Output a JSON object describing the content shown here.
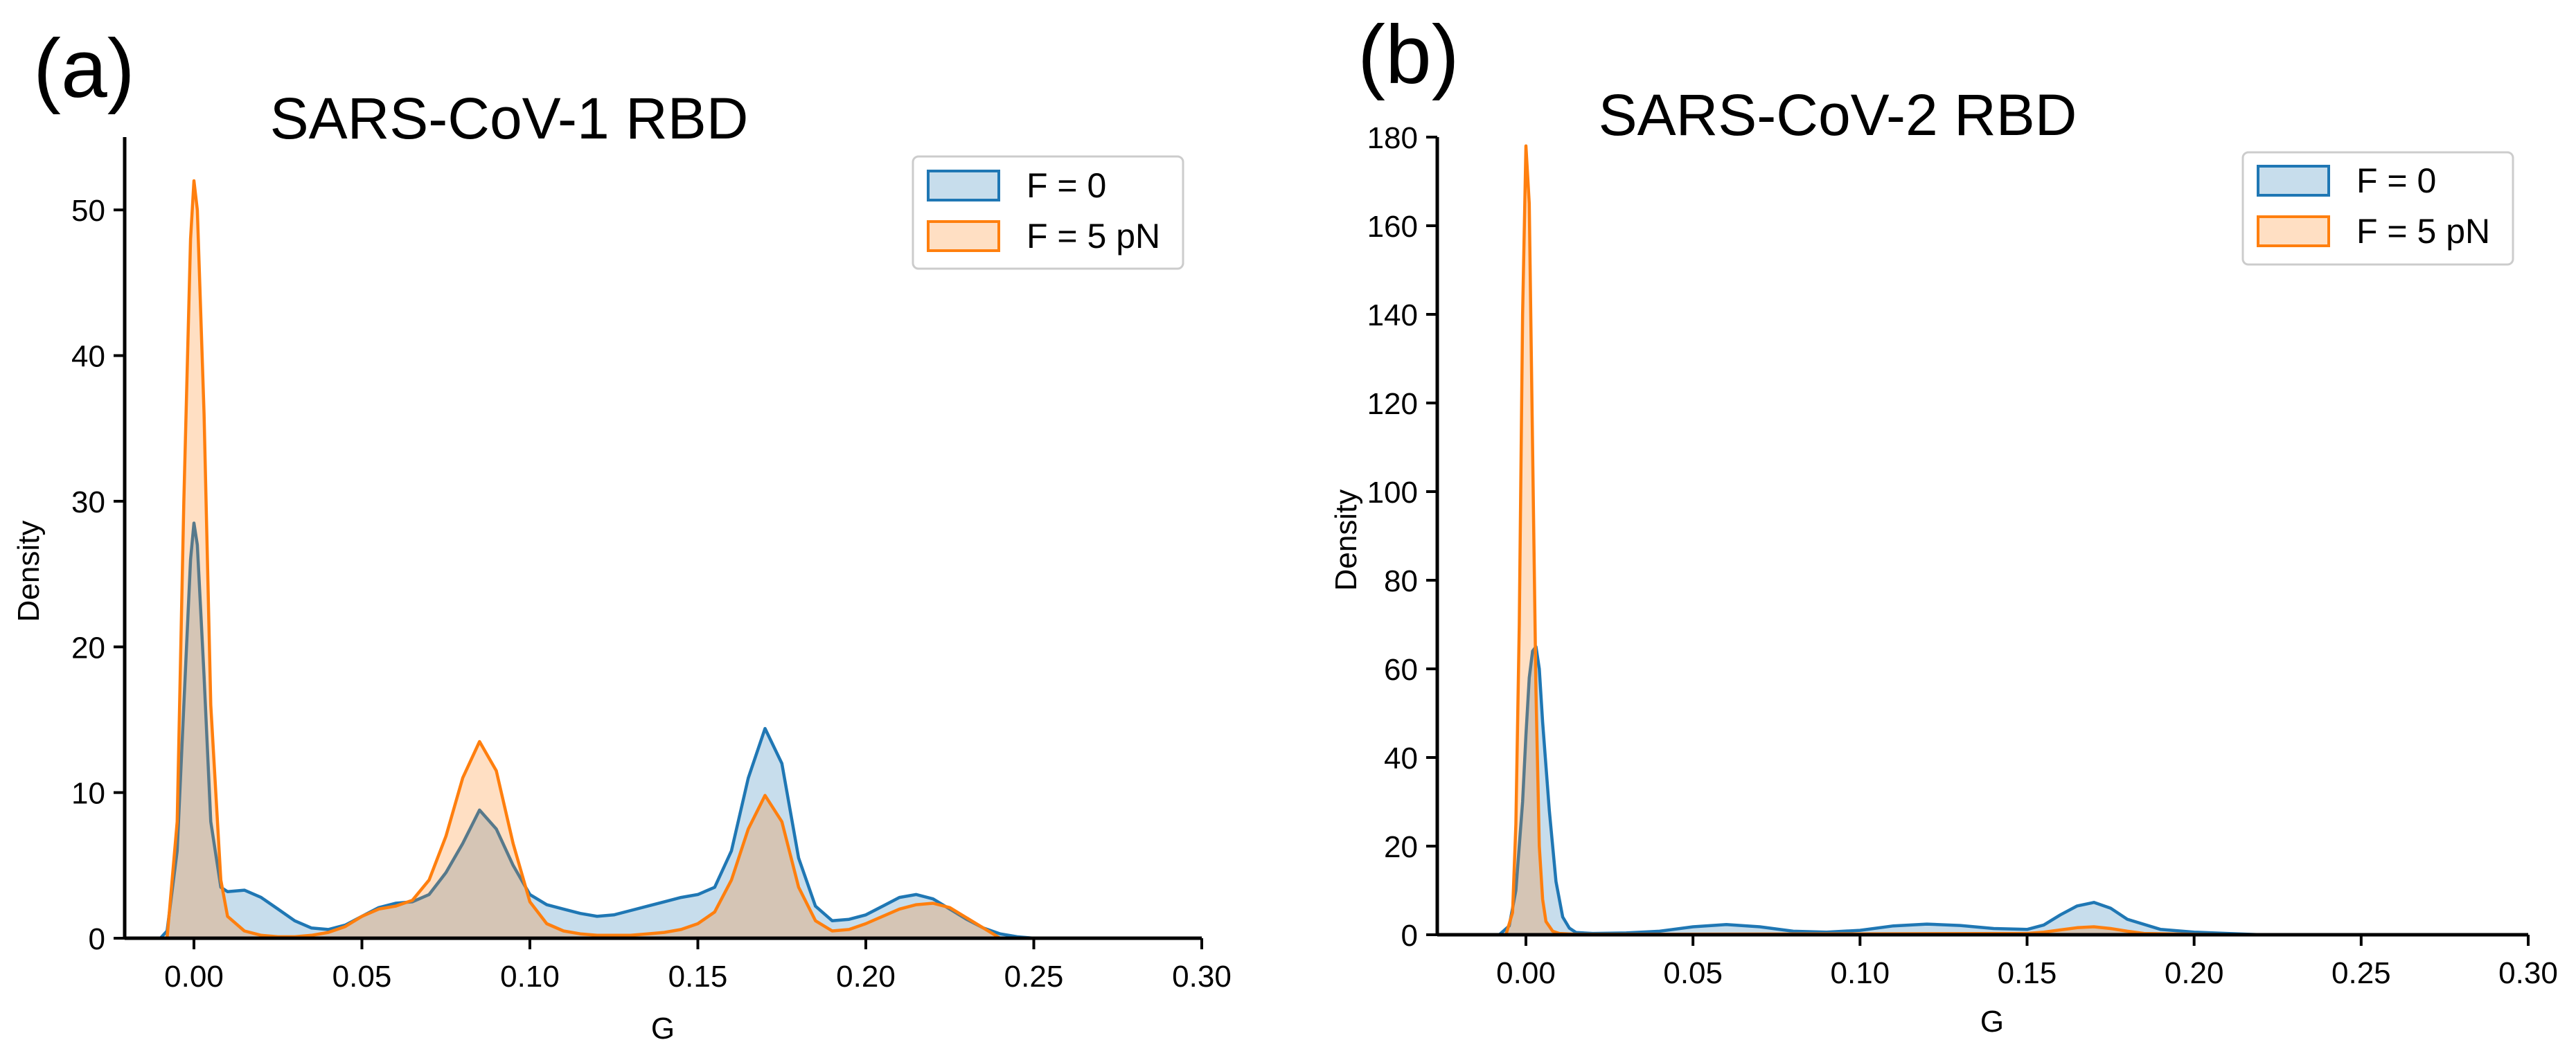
{
  "chart_data": [
    {
      "type": "area",
      "panel_label": "(a)",
      "title": "SARS-CoV-1 RBD",
      "xlabel": "G",
      "ylabel": "Density",
      "xlim": [
        -0.025,
        0.3
      ],
      "ylim": [
        0,
        55
      ],
      "xticks": [
        0.0,
        0.05,
        0.1,
        0.15,
        0.2,
        0.25,
        0.3
      ],
      "xtick_labels": [
        "0.00",
        "0.05",
        "0.10",
        "0.15",
        "0.20",
        "0.25",
        "0.30"
      ],
      "yticks": [
        0,
        10,
        20,
        30,
        40,
        50
      ],
      "ytick_labels": [
        "0",
        "10",
        "20",
        "30",
        "40",
        "50"
      ],
      "legend": {
        "placement": "top-right",
        "entries": [
          "F = 0",
          "F = 5 pN"
        ]
      },
      "series": [
        {
          "name": "F = 0",
          "color": "#1f77b4",
          "fill": "#1f77b4",
          "x": [
            -0.01,
            -0.008,
            -0.005,
            -0.003,
            -0.001,
            0.0,
            0.001,
            0.003,
            0.005,
            0.008,
            0.01,
            0.015,
            0.02,
            0.025,
            0.03,
            0.035,
            0.04,
            0.045,
            0.05,
            0.055,
            0.06,
            0.065,
            0.07,
            0.075,
            0.08,
            0.085,
            0.09,
            0.095,
            0.1,
            0.105,
            0.11,
            0.115,
            0.12,
            0.125,
            0.13,
            0.135,
            0.14,
            0.145,
            0.15,
            0.155,
            0.16,
            0.165,
            0.17,
            0.175,
            0.18,
            0.185,
            0.19,
            0.195,
            0.2,
            0.205,
            0.21,
            0.215,
            0.22,
            0.225,
            0.23,
            0.235,
            0.24,
            0.245,
            0.25,
            0.255
          ],
          "y": [
            0,
            0.5,
            6,
            16,
            26,
            28.5,
            27,
            18,
            8,
            3.5,
            3.2,
            3.3,
            2.8,
            2,
            1.2,
            0.7,
            0.6,
            0.9,
            1.5,
            2.1,
            2.4,
            2.5,
            3,
            4.5,
            6.5,
            8.8,
            7.5,
            5,
            3,
            2.3,
            2,
            1.7,
            1.5,
            1.6,
            1.9,
            2.2,
            2.5,
            2.8,
            3,
            3.5,
            6,
            11,
            14.4,
            12,
            5.5,
            2.2,
            1.2,
            1.3,
            1.6,
            2.2,
            2.8,
            3,
            2.7,
            2,
            1.3,
            0.7,
            0.3,
            0.1,
            0,
            0
          ]
        },
        {
          "name": "F = 5 pN",
          "color": "#ff7f0e",
          "fill": "#ff7f0e",
          "x": [
            -0.008,
            -0.005,
            -0.003,
            -0.001,
            0.0,
            0.001,
            0.003,
            0.005,
            0.008,
            0.01,
            0.015,
            0.02,
            0.025,
            0.03,
            0.035,
            0.04,
            0.045,
            0.05,
            0.055,
            0.06,
            0.065,
            0.07,
            0.075,
            0.08,
            0.085,
            0.09,
            0.095,
            0.1,
            0.105,
            0.11,
            0.115,
            0.12,
            0.125,
            0.13,
            0.135,
            0.14,
            0.145,
            0.15,
            0.155,
            0.16,
            0.165,
            0.17,
            0.175,
            0.18,
            0.185,
            0.19,
            0.195,
            0.2,
            0.205,
            0.21,
            0.215,
            0.22,
            0.225,
            0.23,
            0.235,
            0.24
          ],
          "y": [
            0,
            8,
            30,
            48,
            52,
            50,
            36,
            16,
            4,
            1.5,
            0.5,
            0.2,
            0.1,
            0.1,
            0.2,
            0.4,
            0.8,
            1.5,
            2,
            2.2,
            2.6,
            4,
            7,
            11,
            13.5,
            11.5,
            6.5,
            2.5,
            1,
            0.5,
            0.3,
            0.2,
            0.2,
            0.2,
            0.3,
            0.4,
            0.6,
            1,
            1.8,
            4,
            7.5,
            9.8,
            8,
            3.5,
            1.2,
            0.5,
            0.6,
            1,
            1.5,
            2,
            2.3,
            2.4,
            2.1,
            1.4,
            0.7,
            0
          ]
        }
      ]
    },
    {
      "type": "area",
      "panel_label": "(b)",
      "title": "SARS-CoV-2 RBD",
      "xlabel": "G",
      "ylabel": "Density",
      "xlim": [
        -0.025,
        0.3
      ],
      "ylim": [
        0,
        180
      ],
      "xticks": [
        0.0,
        0.05,
        0.1,
        0.15,
        0.2,
        0.25,
        0.3
      ],
      "xtick_labels": [
        "0.00",
        "0.05",
        "0.10",
        "0.15",
        "0.20",
        "0.25",
        "0.30"
      ],
      "yticks": [
        0,
        20,
        40,
        60,
        80,
        100,
        120,
        140,
        160,
        180
      ],
      "ytick_labels": [
        "0",
        "20",
        "40",
        "60",
        "80",
        "100",
        "120",
        "140",
        "160",
        "180"
      ],
      "legend": {
        "placement": "top-right",
        "entries": [
          "F = 0",
          "F = 5 pN"
        ]
      },
      "series": [
        {
          "name": "F = 0",
          "color": "#1f77b4",
          "fill": "#1f77b4",
          "x": [
            -0.008,
            -0.005,
            -0.003,
            -0.001,
            0.0,
            0.001,
            0.002,
            0.003,
            0.004,
            0.005,
            0.007,
            0.009,
            0.011,
            0.013,
            0.015,
            0.02,
            0.03,
            0.04,
            0.05,
            0.06,
            0.07,
            0.08,
            0.09,
            0.1,
            0.11,
            0.12,
            0.13,
            0.14,
            0.15,
            0.155,
            0.16,
            0.165,
            0.17,
            0.175,
            0.18,
            0.19,
            0.2,
            0.21,
            0.22
          ],
          "y": [
            0,
            2,
            10,
            30,
            45,
            58,
            64,
            65,
            60,
            48,
            28,
            12,
            4,
            1.5,
            0.5,
            0.3,
            0.4,
            0.8,
            1.8,
            2.3,
            1.8,
            0.8,
            0.6,
            1,
            2,
            2.4,
            2.1,
            1.4,
            1.2,
            2.2,
            4.5,
            6.5,
            7.3,
            6,
            3.5,
            1.2,
            0.6,
            0.3,
            0
          ]
        },
        {
          "name": "F = 5 pN",
          "color": "#ff7f0e",
          "fill": "#ff7f0e",
          "x": [
            -0.006,
            -0.004,
            -0.003,
            -0.002,
            -0.001,
            0.0,
            0.001,
            0.002,
            0.003,
            0.004,
            0.005,
            0.006,
            0.008,
            0.01,
            0.015,
            0.02,
            0.1,
            0.15,
            0.155,
            0.16,
            0.165,
            0.17,
            0.175,
            0.18,
            0.185,
            0.2,
            0.22
          ],
          "y": [
            0,
            5,
            25,
            70,
            140,
            178,
            165,
            110,
            55,
            20,
            8,
            3,
            0.8,
            0.3,
            0.1,
            0.1,
            0.2,
            0.3,
            0.6,
            1.1,
            1.6,
            1.8,
            1.4,
            0.8,
            0.3,
            0.1,
            0
          ]
        }
      ]
    }
  ]
}
